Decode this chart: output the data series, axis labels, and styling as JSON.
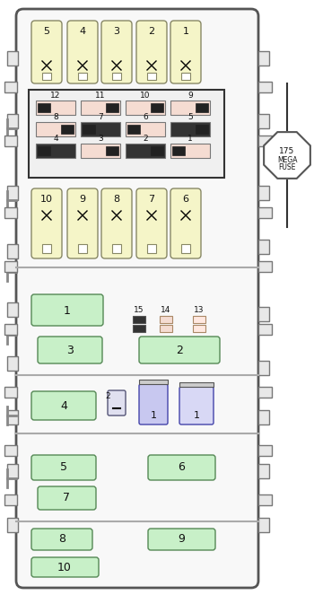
{
  "fig_width": 3.5,
  "fig_height": 6.63,
  "bg_color": "#ffffff",
  "box_bg": "#f5f5f5",
  "yellow_fuse_color": "#f5f5c8",
  "green_relay_color": "#c8f0c8",
  "blue_relay_color": "#c8c8f0",
  "pink_fuse_color": "#f5dcd2",
  "border_color": "#555555",
  "text_color": "#111111",
  "megafuse_label": "175\nMEGAFUSE"
}
